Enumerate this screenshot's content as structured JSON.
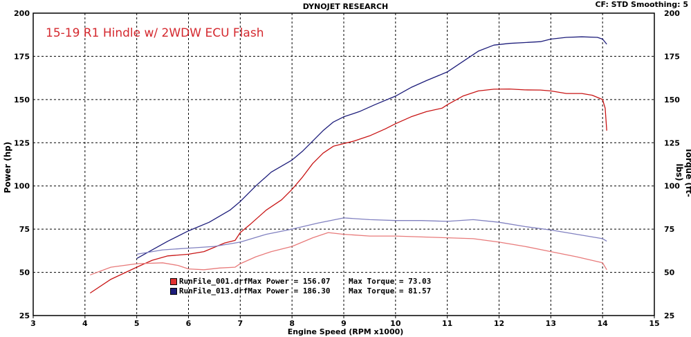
{
  "header": {
    "title": "DYNOJET RESEARCH",
    "corner": "CF: STD  Smoothing: 5"
  },
  "annotation": "15-19 R1 Hindle w/ 2WDW ECU Flash",
  "legend": [
    {
      "file": "RunFile_001.drf",
      "text": "Max Power = 156.07    Max Torque = 73.03",
      "color": "#e03030"
    },
    {
      "file": "RunFile_013.drf",
      "text": "Max Power = 186.30    Max Torque = 81.57",
      "color": "#1c1c7a"
    }
  ],
  "chart_data": {
    "type": "line",
    "xlabel": "Engine Speed (RPM x1000)",
    "ylabel": "Power (hp)",
    "y2label": "Torque (ft-lbs)",
    "xlim": [
      3,
      15
    ],
    "ylim": [
      25,
      200
    ],
    "xticks": [
      3,
      4,
      5,
      6,
      7,
      8,
      9,
      10,
      11,
      12,
      13,
      14,
      15
    ],
    "yticks": [
      25,
      50,
      75,
      100,
      125,
      150,
      175,
      200
    ],
    "grid": true,
    "series": [
      {
        "name": "RunFile_001.drf Power",
        "color": "#c81414",
        "x": [
          4.1,
          4.5,
          5.0,
          5.3,
          5.6,
          6.0,
          6.3,
          6.5,
          6.7,
          6.9,
          7.0,
          7.2,
          7.5,
          7.8,
          8.0,
          8.2,
          8.4,
          8.6,
          8.8,
          9.0,
          9.2,
          9.5,
          9.8,
          10.0,
          10.3,
          10.6,
          10.9,
          11.0,
          11.3,
          11.6,
          11.9,
          12.2,
          12.5,
          12.8,
          13.0,
          13.3,
          13.6,
          13.8,
          14.0,
          14.05,
          14.08
        ],
        "values": [
          38,
          46,
          53,
          57,
          59.5,
          60.5,
          62,
          64.5,
          67,
          68.5,
          73,
          78,
          86,
          92,
          98,
          105,
          113,
          119,
          123,
          124.5,
          126,
          129,
          133,
          136,
          140,
          143,
          145,
          147,
          152,
          155,
          156,
          156.1,
          155.6,
          155.5,
          155,
          153.5,
          153.5,
          152.5,
          150,
          145,
          132
        ]
      },
      {
        "name": "RunFile_013.drf Power",
        "color": "#1c1c7a",
        "x": [
          5.0,
          5.3,
          5.6,
          6.0,
          6.4,
          6.8,
          7.0,
          7.3,
          7.6,
          8.0,
          8.2,
          8.4,
          8.6,
          8.8,
          9.0,
          9.3,
          9.6,
          10.0,
          10.3,
          10.6,
          11.0,
          11.3,
          11.6,
          11.9,
          12.2,
          12.5,
          12.8,
          13.0,
          13.3,
          13.6,
          13.9,
          14.0,
          14.08
        ],
        "values": [
          58,
          63,
          68,
          74,
          79,
          86,
          91,
          100,
          108,
          115,
          120,
          126,
          132,
          137,
          140,
          143,
          147,
          152,
          157,
          161,
          166,
          172,
          178,
          181.5,
          182.5,
          183,
          183.5,
          185,
          186,
          186.3,
          186,
          185,
          182
        ]
      },
      {
        "name": "RunFile_001.drf Torque",
        "color": "#e87a7a",
        "x": [
          4.1,
          4.5,
          5.0,
          5.5,
          5.8,
          6.0,
          6.3,
          6.6,
          6.9,
          7.0,
          7.3,
          7.6,
          8.0,
          8.4,
          8.7,
          9.0,
          9.5,
          10.0,
          10.5,
          11.0,
          11.5,
          12.0,
          12.5,
          13.0,
          13.5,
          14.0,
          14.08
        ],
        "values": [
          48.5,
          53,
          55,
          55.5,
          54,
          52,
          51.5,
          52.5,
          53,
          55,
          59,
          62,
          65,
          70,
          73,
          72,
          71,
          71,
          70.5,
          70,
          69.5,
          67.5,
          65,
          62,
          59,
          55.5,
          51.5
        ]
      },
      {
        "name": "RunFile_013.drf Torque",
        "color": "#8080c0",
        "x": [
          5.0,
          5.5,
          6.0,
          6.5,
          7.0,
          7.5,
          8.0,
          8.5,
          9.0,
          9.5,
          10.0,
          10.5,
          11.0,
          11.5,
          12.0,
          12.5,
          13.0,
          13.5,
          14.0,
          14.08
        ],
        "values": [
          60.5,
          63,
          64,
          65,
          67.5,
          72,
          75,
          78.5,
          81.5,
          80.5,
          80,
          80,
          79.5,
          80.5,
          79,
          76.5,
          74.5,
          72,
          69.5,
          68
        ]
      }
    ]
  }
}
